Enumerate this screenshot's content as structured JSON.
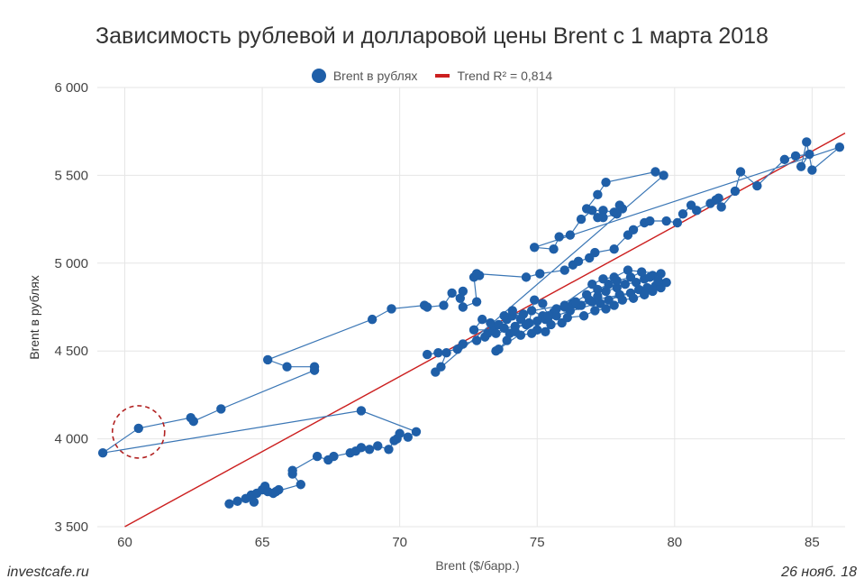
{
  "chart_data": {
    "type": "scatter",
    "title": "Зависимость рублевой и долларовой цены Brent с 1 марта 2018",
    "xlabel": "Brent ($/барр.)",
    "ylabel": "Brent в рублях",
    "xlim": [
      59,
      86.2
    ],
    "ylim": [
      3500,
      6000
    ],
    "xticks": [
      "60",
      "65",
      "70",
      "75",
      "80",
      "85"
    ],
    "yticks": [
      "3 500",
      "4 000",
      "4 500",
      "5 000",
      "5 500",
      "6 000"
    ],
    "grid": true,
    "legend_position": "top-center",
    "series": [
      {
        "name": "Brent в рублях",
        "color": "#1f5fa8",
        "line_color": "#3a76b5",
        "points": [
          [
            63.8,
            3630
          ],
          [
            64.1,
            3645
          ],
          [
            64.4,
            3660
          ],
          [
            64.6,
            3680
          ],
          [
            64.7,
            3640
          ],
          [
            64.8,
            3690
          ],
          [
            65.0,
            3710
          ],
          [
            65.1,
            3730
          ],
          [
            65.2,
            3700
          ],
          [
            65.4,
            3690
          ],
          [
            65.6,
            3710
          ],
          [
            65.5,
            3700
          ],
          [
            66.4,
            3740
          ],
          [
            66.1,
            3800
          ],
          [
            66.1,
            3820
          ],
          [
            67.0,
            3900
          ],
          [
            67.4,
            3880
          ],
          [
            67.6,
            3900
          ],
          [
            68.2,
            3920
          ],
          [
            68.4,
            3930
          ],
          [
            68.6,
            3950
          ],
          [
            68.9,
            3940
          ],
          [
            69.2,
            3960
          ],
          [
            69.6,
            3940
          ],
          [
            69.8,
            3990
          ],
          [
            69.9,
            4000
          ],
          [
            70.0,
            4030
          ],
          [
            70.3,
            4010
          ],
          [
            70.6,
            4040
          ],
          [
            68.6,
            4160
          ],
          [
            59.2,
            3920
          ],
          [
            60.5,
            4060
          ],
          [
            62.4,
            4120
          ],
          [
            62.5,
            4100
          ],
          [
            63.5,
            4170
          ],
          [
            66.9,
            4390
          ],
          [
            66.9,
            4410
          ],
          [
            65.9,
            4410
          ],
          [
            65.2,
            4450
          ],
          [
            69.0,
            4680
          ],
          [
            69.7,
            4740
          ],
          [
            70.9,
            4760
          ],
          [
            71.0,
            4750
          ],
          [
            71.6,
            4760
          ],
          [
            71.9,
            4830
          ],
          [
            72.2,
            4800
          ],
          [
            72.3,
            4840
          ],
          [
            72.3,
            4750
          ],
          [
            72.8,
            4780
          ],
          [
            72.7,
            4920
          ],
          [
            72.9,
            4930
          ],
          [
            72.8,
            4940
          ],
          [
            74.6,
            4920
          ],
          [
            75.1,
            4940
          ],
          [
            76.0,
            4960
          ],
          [
            76.3,
            4990
          ],
          [
            76.5,
            5010
          ],
          [
            76.9,
            5030
          ],
          [
            77.1,
            5060
          ],
          [
            77.8,
            5080
          ],
          [
            78.3,
            5160
          ],
          [
            78.5,
            5190
          ],
          [
            78.9,
            5230
          ],
          [
            79.1,
            5240
          ],
          [
            79.7,
            5240
          ],
          [
            80.1,
            5230
          ],
          [
            80.3,
            5280
          ],
          [
            80.6,
            5330
          ],
          [
            80.8,
            5300
          ],
          [
            81.3,
            5340
          ],
          [
            81.6,
            5370
          ],
          [
            81.5,
            5360
          ],
          [
            81.7,
            5320
          ],
          [
            82.2,
            5410
          ],
          [
            82.4,
            5520
          ],
          [
            83.0,
            5440
          ],
          [
            84.0,
            5590
          ],
          [
            84.4,
            5610
          ],
          [
            84.9,
            5620
          ],
          [
            84.6,
            5550
          ],
          [
            84.8,
            5690
          ],
          [
            85.0,
            5530
          ],
          [
            86.0,
            5660
          ],
          [
            74.9,
            5090
          ],
          [
            75.6,
            5080
          ],
          [
            75.8,
            5150
          ],
          [
            76.2,
            5160
          ],
          [
            76.6,
            5250
          ],
          [
            77.0,
            5300
          ],
          [
            77.4,
            5300
          ],
          [
            77.8,
            5290
          ],
          [
            78.0,
            5330
          ],
          [
            78.1,
            5310
          ],
          [
            77.9,
            5280
          ],
          [
            77.4,
            5260
          ],
          [
            77.2,
            5260
          ],
          [
            76.8,
            5310
          ],
          [
            77.2,
            5390
          ],
          [
            77.5,
            5460
          ],
          [
            79.3,
            5520
          ],
          [
            79.6,
            5500
          ],
          [
            71.3,
            4380
          ],
          [
            71.5,
            4410
          ],
          [
            71.7,
            4490
          ],
          [
            71.4,
            4490
          ],
          [
            71.0,
            4480
          ],
          [
            72.1,
            4510
          ],
          [
            72.3,
            4540
          ],
          [
            72.8,
            4560
          ],
          [
            73.2,
            4600
          ],
          [
            73.4,
            4620
          ],
          [
            72.7,
            4620
          ],
          [
            73.0,
            4680
          ],
          [
            73.3,
            4660
          ],
          [
            73.6,
            4650
          ],
          [
            73.9,
            4680
          ],
          [
            74.1,
            4700
          ],
          [
            74.5,
            4710
          ],
          [
            74.8,
            4730
          ],
          [
            75.2,
            4700
          ],
          [
            75.4,
            4690
          ],
          [
            75.6,
            4720
          ],
          [
            76.0,
            4750
          ],
          [
            76.3,
            4770
          ],
          [
            76.6,
            4760
          ],
          [
            77.0,
            4780
          ],
          [
            77.3,
            4770
          ],
          [
            77.6,
            4790
          ],
          [
            78.0,
            4820
          ],
          [
            78.4,
            4830
          ],
          [
            78.7,
            4850
          ],
          [
            79.0,
            4860
          ],
          [
            79.3,
            4870
          ],
          [
            79.7,
            4890
          ],
          [
            73.1,
            4580
          ],
          [
            73.5,
            4600
          ],
          [
            73.8,
            4630
          ],
          [
            74.2,
            4640
          ],
          [
            74.6,
            4650
          ],
          [
            75.0,
            4670
          ],
          [
            75.3,
            4680
          ],
          [
            75.7,
            4700
          ],
          [
            76.2,
            4730
          ],
          [
            76.5,
            4760
          ],
          [
            76.9,
            4790
          ],
          [
            77.2,
            4810
          ],
          [
            77.5,
            4840
          ],
          [
            77.9,
            4860
          ],
          [
            78.2,
            4880
          ],
          [
            78.6,
            4890
          ],
          [
            78.9,
            4910
          ],
          [
            79.2,
            4930
          ],
          [
            79.5,
            4940
          ],
          [
            78.3,
            4960
          ],
          [
            77.8,
            4920
          ],
          [
            77.4,
            4910
          ],
          [
            77.0,
            4880
          ],
          [
            73.5,
            4500
          ],
          [
            73.6,
            4510
          ],
          [
            73.9,
            4560
          ],
          [
            74.0,
            4600
          ],
          [
            74.2,
            4610
          ],
          [
            74.4,
            4590
          ],
          [
            74.8,
            4600
          ],
          [
            75.0,
            4620
          ],
          [
            75.3,
            4610
          ],
          [
            75.5,
            4650
          ],
          [
            75.9,
            4660
          ],
          [
            76.1,
            4690
          ],
          [
            76.7,
            4700
          ],
          [
            77.1,
            4730
          ],
          [
            77.5,
            4740
          ],
          [
            77.8,
            4760
          ],
          [
            78.1,
            4790
          ],
          [
            78.5,
            4800
          ],
          [
            78.9,
            4820
          ],
          [
            79.2,
            4840
          ],
          [
            79.5,
            4860
          ],
          [
            73.8,
            4700
          ],
          [
            74.1,
            4730
          ],
          [
            74.4,
            4680
          ],
          [
            74.7,
            4660
          ],
          [
            74.9,
            4790
          ],
          [
            75.2,
            4770
          ],
          [
            75.4,
            4700
          ],
          [
            75.7,
            4740
          ],
          [
            76.0,
            4760
          ],
          [
            76.4,
            4780
          ],
          [
            76.8,
            4820
          ],
          [
            77.2,
            4850
          ],
          [
            77.6,
            4880
          ],
          [
            77.9,
            4900
          ],
          [
            78.4,
            4920
          ],
          [
            78.8,
            4950
          ],
          [
            79.1,
            4920
          ],
          [
            79.4,
            4900
          ]
        ]
      },
      {
        "name": "Trend R² = 0,814",
        "color": "#cc1f1f",
        "type": "line",
        "points": [
          [
            60.0,
            3500
          ],
          [
            86.2,
            5740
          ]
        ]
      }
    ],
    "annotations": [
      {
        "type": "dashed-circle",
        "color": "#b22222",
        "at": [
          60.5,
          4060
        ]
      }
    ]
  },
  "footer": {
    "source": "investcafe.ru",
    "date": "26 нояб. 18"
  }
}
